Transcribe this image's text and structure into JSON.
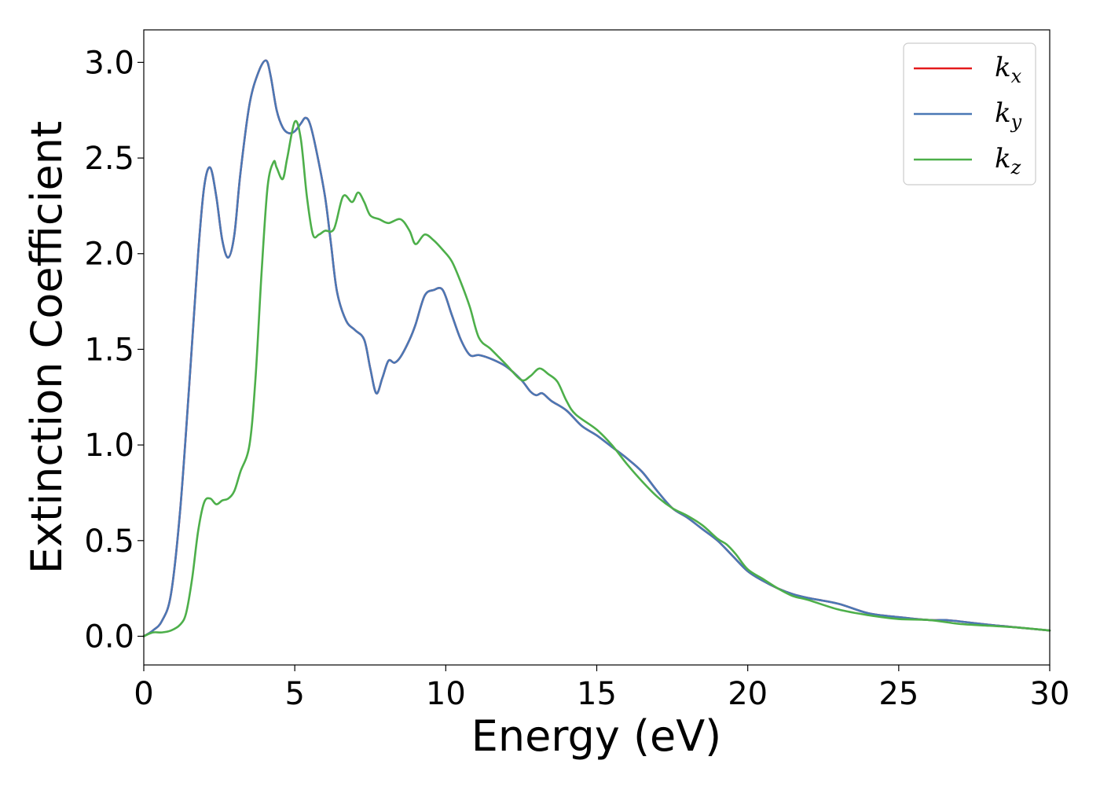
{
  "chart_data": {
    "type": "line",
    "title": "",
    "xlabel": "Energy (eV)",
    "ylabel": "Extinction Coefficient",
    "xlim": [
      0,
      30
    ],
    "ylim": [
      -0.15,
      3.17
    ],
    "xticks": [
      0,
      5,
      10,
      15,
      20,
      25,
      30
    ],
    "xtick_labels": [
      "0",
      "5",
      "10",
      "15",
      "20",
      "25",
      "30"
    ],
    "yticks": [
      0.0,
      0.5,
      1.0,
      1.5,
      2.0,
      2.5,
      3.0
    ],
    "ytick_labels": [
      "0.0",
      "0.5",
      "1.0",
      "1.5",
      "2.0",
      "2.5",
      "3.0"
    ],
    "grid": false,
    "legend": {
      "placement": "top-right"
    },
    "series": [
      {
        "name": "k_x",
        "label_base": "k",
        "label_sub": "x",
        "color": "#e41a1c",
        "points": [
          [
            0,
            0.0
          ],
          [
            0.3,
            0.03
          ],
          [
            0.6,
            0.08
          ],
          [
            0.9,
            0.22
          ],
          [
            1.2,
            0.65
          ],
          [
            1.5,
            1.3
          ],
          [
            1.8,
            2.0
          ],
          [
            2.0,
            2.35
          ],
          [
            2.2,
            2.45
          ],
          [
            2.4,
            2.3
          ],
          [
            2.6,
            2.07
          ],
          [
            2.8,
            1.98
          ],
          [
            3.0,
            2.1
          ],
          [
            3.2,
            2.42
          ],
          [
            3.5,
            2.78
          ],
          [
            3.8,
            2.95
          ],
          [
            4.05,
            3.01
          ],
          [
            4.2,
            2.93
          ],
          [
            4.4,
            2.75
          ],
          [
            4.6,
            2.66
          ],
          [
            4.8,
            2.63
          ],
          [
            5.0,
            2.64
          ],
          [
            5.2,
            2.68
          ],
          [
            5.35,
            2.71
          ],
          [
            5.5,
            2.68
          ],
          [
            5.7,
            2.55
          ],
          [
            6.0,
            2.3
          ],
          [
            6.2,
            2.05
          ],
          [
            6.4,
            1.8
          ],
          [
            6.7,
            1.65
          ],
          [
            7.0,
            1.6
          ],
          [
            7.3,
            1.55
          ],
          [
            7.5,
            1.4
          ],
          [
            7.7,
            1.27
          ],
          [
            7.9,
            1.35
          ],
          [
            8.1,
            1.44
          ],
          [
            8.3,
            1.43
          ],
          [
            8.5,
            1.46
          ],
          [
            8.8,
            1.55
          ],
          [
            9.0,
            1.63
          ],
          [
            9.3,
            1.78
          ],
          [
            9.6,
            1.81
          ],
          [
            9.9,
            1.81
          ],
          [
            10.2,
            1.68
          ],
          [
            10.5,
            1.55
          ],
          [
            10.8,
            1.47
          ],
          [
            11.1,
            1.47
          ],
          [
            11.5,
            1.45
          ],
          [
            12.0,
            1.41
          ],
          [
            12.5,
            1.34
          ],
          [
            12.8,
            1.28
          ],
          [
            13.0,
            1.26
          ],
          [
            13.2,
            1.27
          ],
          [
            13.5,
            1.23
          ],
          [
            14.0,
            1.18
          ],
          [
            14.5,
            1.1
          ],
          [
            15.0,
            1.05
          ],
          [
            15.5,
            0.99
          ],
          [
            16.0,
            0.93
          ],
          [
            16.5,
            0.86
          ],
          [
            17.0,
            0.76
          ],
          [
            17.5,
            0.67
          ],
          [
            18.0,
            0.62
          ],
          [
            18.5,
            0.56
          ],
          [
            19.0,
            0.5
          ],
          [
            19.5,
            0.42
          ],
          [
            20.0,
            0.34
          ],
          [
            20.5,
            0.29
          ],
          [
            21.0,
            0.25
          ],
          [
            21.5,
            0.22
          ],
          [
            22.0,
            0.2
          ],
          [
            23.0,
            0.17
          ],
          [
            24.0,
            0.12
          ],
          [
            25.0,
            0.1
          ],
          [
            26.0,
            0.085
          ],
          [
            26.5,
            0.085
          ],
          [
            27.0,
            0.078
          ],
          [
            28.0,
            0.06
          ],
          [
            29.0,
            0.045
          ],
          [
            30.0,
            0.03
          ]
        ]
      },
      {
        "name": "k_y",
        "label_base": "k",
        "label_sub": "y",
        "color": "#4a78b5",
        "points": [
          [
            0,
            0.0
          ],
          [
            0.3,
            0.03
          ],
          [
            0.6,
            0.08
          ],
          [
            0.9,
            0.22
          ],
          [
            1.2,
            0.65
          ],
          [
            1.5,
            1.3
          ],
          [
            1.8,
            2.0
          ],
          [
            2.0,
            2.35
          ],
          [
            2.2,
            2.45
          ],
          [
            2.4,
            2.3
          ],
          [
            2.6,
            2.07
          ],
          [
            2.8,
            1.98
          ],
          [
            3.0,
            2.1
          ],
          [
            3.2,
            2.42
          ],
          [
            3.5,
            2.78
          ],
          [
            3.8,
            2.95
          ],
          [
            4.05,
            3.01
          ],
          [
            4.2,
            2.93
          ],
          [
            4.4,
            2.75
          ],
          [
            4.6,
            2.66
          ],
          [
            4.8,
            2.63
          ],
          [
            5.0,
            2.64
          ],
          [
            5.2,
            2.68
          ],
          [
            5.35,
            2.71
          ],
          [
            5.5,
            2.68
          ],
          [
            5.7,
            2.55
          ],
          [
            6.0,
            2.3
          ],
          [
            6.2,
            2.05
          ],
          [
            6.4,
            1.8
          ],
          [
            6.7,
            1.65
          ],
          [
            7.0,
            1.6
          ],
          [
            7.3,
            1.55
          ],
          [
            7.5,
            1.4
          ],
          [
            7.7,
            1.27
          ],
          [
            7.9,
            1.35
          ],
          [
            8.1,
            1.44
          ],
          [
            8.3,
            1.43
          ],
          [
            8.5,
            1.46
          ],
          [
            8.8,
            1.55
          ],
          [
            9.0,
            1.63
          ],
          [
            9.3,
            1.78
          ],
          [
            9.6,
            1.81
          ],
          [
            9.9,
            1.81
          ],
          [
            10.2,
            1.68
          ],
          [
            10.5,
            1.55
          ],
          [
            10.8,
            1.47
          ],
          [
            11.1,
            1.47
          ],
          [
            11.5,
            1.45
          ],
          [
            12.0,
            1.41
          ],
          [
            12.5,
            1.34
          ],
          [
            12.8,
            1.28
          ],
          [
            13.0,
            1.26
          ],
          [
            13.2,
            1.27
          ],
          [
            13.5,
            1.23
          ],
          [
            14.0,
            1.18
          ],
          [
            14.5,
            1.1
          ],
          [
            15.0,
            1.05
          ],
          [
            15.5,
            0.99
          ],
          [
            16.0,
            0.93
          ],
          [
            16.5,
            0.86
          ],
          [
            17.0,
            0.76
          ],
          [
            17.5,
            0.67
          ],
          [
            18.0,
            0.62
          ],
          [
            18.5,
            0.56
          ],
          [
            19.0,
            0.5
          ],
          [
            19.5,
            0.42
          ],
          [
            20.0,
            0.34
          ],
          [
            20.5,
            0.29
          ],
          [
            21.0,
            0.25
          ],
          [
            21.5,
            0.22
          ],
          [
            22.0,
            0.2
          ],
          [
            23.0,
            0.17
          ],
          [
            24.0,
            0.12
          ],
          [
            25.0,
            0.1
          ],
          [
            26.0,
            0.085
          ],
          [
            26.5,
            0.085
          ],
          [
            27.0,
            0.078
          ],
          [
            28.0,
            0.06
          ],
          [
            29.0,
            0.045
          ],
          [
            30.0,
            0.03
          ]
        ]
      },
      {
        "name": "k_z",
        "label_base": "k",
        "label_sub": "z",
        "color": "#4daf4a",
        "points": [
          [
            0,
            0.0
          ],
          [
            0.3,
            0.02
          ],
          [
            0.6,
            0.02
          ],
          [
            0.9,
            0.03
          ],
          [
            1.2,
            0.06
          ],
          [
            1.4,
            0.12
          ],
          [
            1.6,
            0.3
          ],
          [
            1.8,
            0.55
          ],
          [
            2.0,
            0.7
          ],
          [
            2.2,
            0.72
          ],
          [
            2.4,
            0.69
          ],
          [
            2.6,
            0.71
          ],
          [
            2.8,
            0.72
          ],
          [
            3.0,
            0.76
          ],
          [
            3.2,
            0.86
          ],
          [
            3.5,
            1.0
          ],
          [
            3.7,
            1.35
          ],
          [
            3.9,
            1.9
          ],
          [
            4.1,
            2.35
          ],
          [
            4.3,
            2.48
          ],
          [
            4.4,
            2.45
          ],
          [
            4.6,
            2.39
          ],
          [
            4.75,
            2.5
          ],
          [
            5.0,
            2.69
          ],
          [
            5.2,
            2.6
          ],
          [
            5.4,
            2.3
          ],
          [
            5.6,
            2.1
          ],
          [
            5.8,
            2.1
          ],
          [
            6.0,
            2.12
          ],
          [
            6.3,
            2.13
          ],
          [
            6.6,
            2.3
          ],
          [
            6.9,
            2.27
          ],
          [
            7.1,
            2.32
          ],
          [
            7.3,
            2.27
          ],
          [
            7.5,
            2.2
          ],
          [
            7.8,
            2.18
          ],
          [
            8.1,
            2.16
          ],
          [
            8.5,
            2.18
          ],
          [
            8.8,
            2.12
          ],
          [
            9.0,
            2.05
          ],
          [
            9.3,
            2.1
          ],
          [
            9.6,
            2.07
          ],
          [
            9.9,
            2.02
          ],
          [
            10.2,
            1.96
          ],
          [
            10.5,
            1.85
          ],
          [
            10.8,
            1.72
          ],
          [
            11.1,
            1.56
          ],
          [
            11.5,
            1.5
          ],
          [
            12.0,
            1.42
          ],
          [
            12.5,
            1.34
          ],
          [
            12.8,
            1.36
          ],
          [
            13.1,
            1.4
          ],
          [
            13.4,
            1.37
          ],
          [
            13.7,
            1.33
          ],
          [
            14.0,
            1.23
          ],
          [
            14.3,
            1.16
          ],
          [
            15.0,
            1.08
          ],
          [
            15.5,
            1.0
          ],
          [
            16.0,
            0.9
          ],
          [
            16.5,
            0.81
          ],
          [
            17.0,
            0.73
          ],
          [
            17.5,
            0.67
          ],
          [
            18.0,
            0.63
          ],
          [
            18.5,
            0.58
          ],
          [
            19.0,
            0.51
          ],
          [
            19.3,
            0.48
          ],
          [
            19.6,
            0.43
          ],
          [
            20.0,
            0.35
          ],
          [
            20.5,
            0.3
          ],
          [
            21.0,
            0.25
          ],
          [
            21.5,
            0.21
          ],
          [
            22.0,
            0.19
          ],
          [
            23.0,
            0.14
          ],
          [
            24.0,
            0.11
          ],
          [
            25.0,
            0.09
          ],
          [
            26.0,
            0.085
          ],
          [
            27.0,
            0.065
          ],
          [
            28.0,
            0.055
          ],
          [
            29.0,
            0.045
          ],
          [
            30.0,
            0.03
          ]
        ]
      }
    ]
  }
}
